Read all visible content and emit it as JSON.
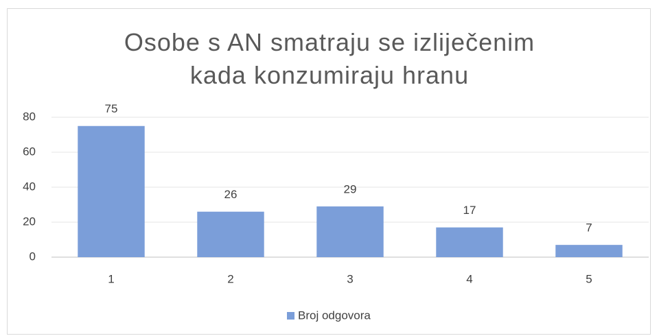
{
  "chart_data": {
    "type": "bar",
    "title": "Osobe s AN smatraju se izliječenim kada konzumiraju hranu",
    "categories": [
      "1",
      "2",
      "3",
      "4",
      "5"
    ],
    "series": [
      {
        "name": "Broj odgovora",
        "color": "#7b9ed9",
        "values": [
          75,
          26,
          29,
          17,
          7
        ]
      }
    ],
    "ylim": [
      0,
      80
    ],
    "yticks": [
      0,
      20,
      40,
      60,
      80
    ],
    "grid": true,
    "legend": "bottom"
  }
}
